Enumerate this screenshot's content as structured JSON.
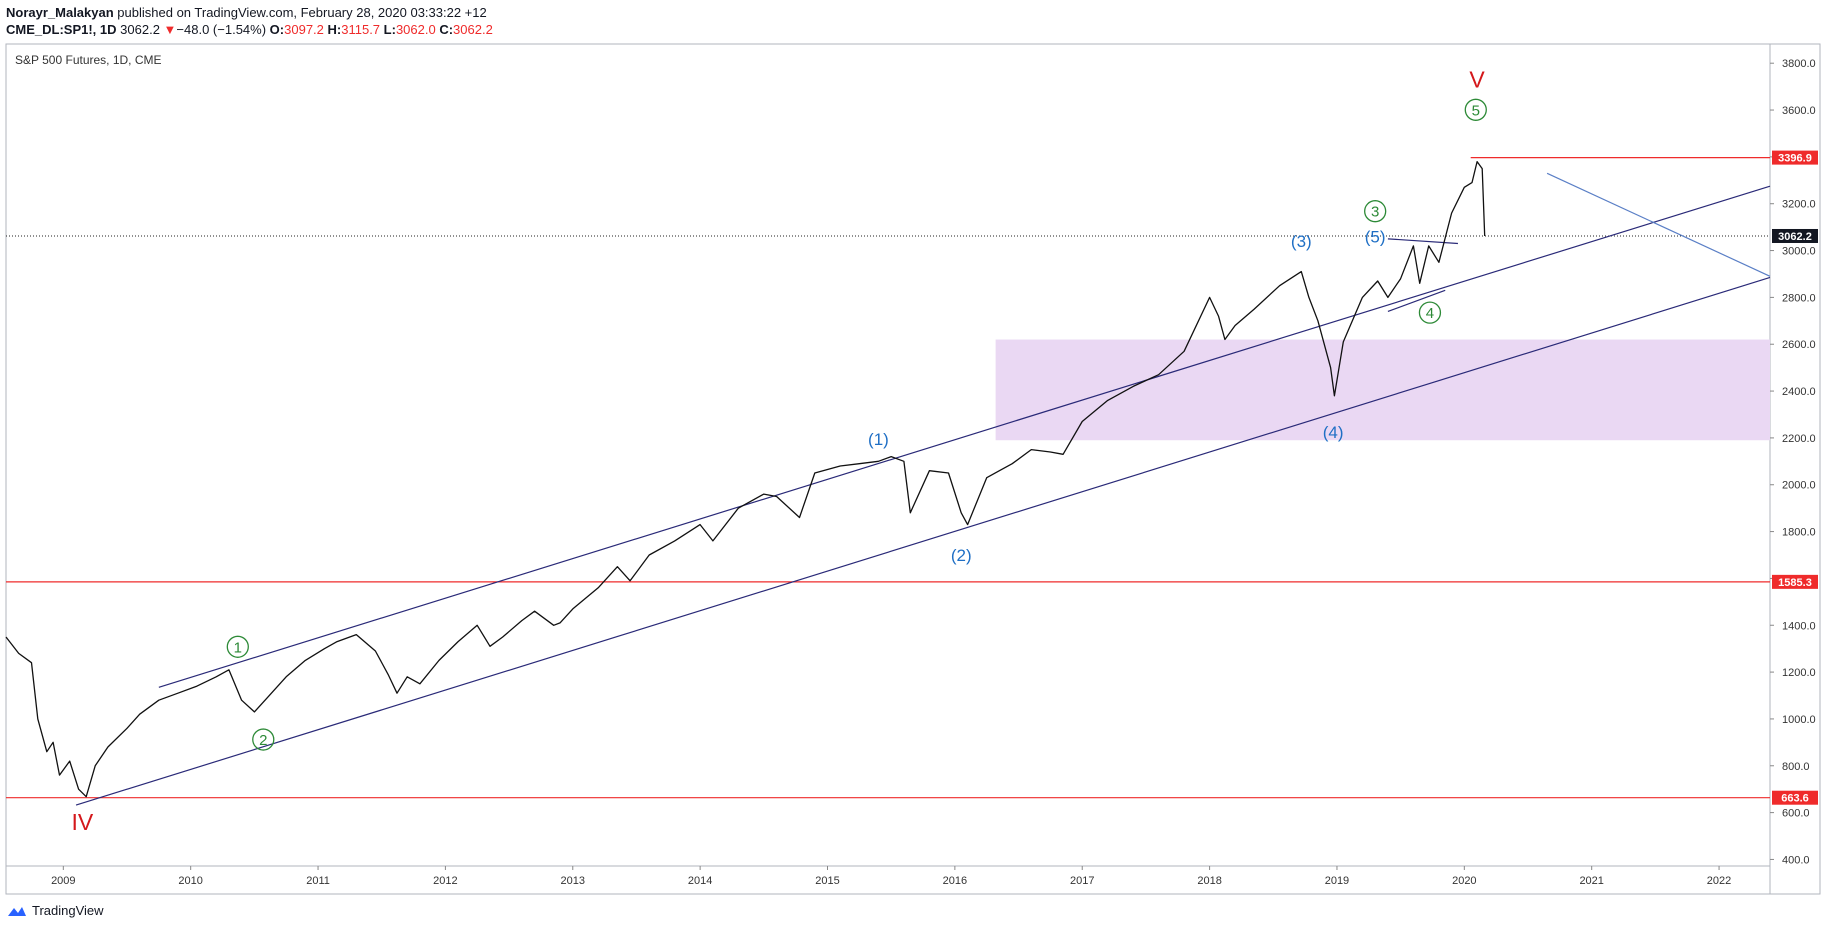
{
  "header": {
    "author": "Norayr_Malakyan",
    "published_text": "published on TradingView.com, February 28, 2020 03:33:22 +12",
    "symbol": "CME_DL:SP1!, 1D",
    "last": "3062.2",
    "change_arrow": "▼",
    "change": "−48.0 (−1.54%)",
    "o_label": "O:",
    "o_value": "3097.2",
    "h_label": "H:",
    "h_value": "3115.7",
    "l_label": "L:",
    "l_value": "3062.0",
    "c_label": "C:",
    "c_value": "3062.2"
  },
  "footer": {
    "brand": "TradingView",
    "logo_icon": "tradingview-logo-icon"
  },
  "chart_data": {
    "type": "line",
    "title": "S&P 500 Futures, 1D, CME",
    "xlabel": "",
    "ylabel": "",
    "x_ticks": [
      "2009",
      "2010",
      "2011",
      "2012",
      "2013",
      "2014",
      "2015",
      "2016",
      "2017",
      "2018",
      "2019",
      "2020",
      "2021",
      "2022"
    ],
    "y_ticks": [
      400,
      600,
      800,
      1000,
      1200,
      1400,
      1600,
      1800,
      2000,
      2200,
      2400,
      2600,
      2800,
      3000,
      3200,
      3400,
      3600,
      3800
    ],
    "xlim": [
      2008.55,
      2022.4
    ],
    "ylim": [
      372,
      3882
    ],
    "grid": false,
    "series": [
      {
        "x": [
          2008.55,
          2008.65,
          2008.75,
          2008.8,
          2008.87,
          2008.92,
          2008.97,
          2009.05,
          2009.12,
          2009.18,
          2009.25,
          2009.35,
          2009.5,
          2009.6,
          2009.75,
          2009.9,
          2010.05,
          2010.2,
          2010.3,
          2010.4,
          2010.5,
          2010.6,
          2010.75,
          2010.9,
          2011.05,
          2011.15,
          2011.3,
          2011.45,
          2011.55,
          2011.62,
          2011.7,
          2011.8,
          2011.95,
          2012.1,
          2012.25,
          2012.35,
          2012.45,
          2012.6,
          2012.7,
          2012.85,
          2012.9,
          2013.0,
          2013.2,
          2013.35,
          2013.45,
          2013.6,
          2013.8,
          2014.0,
          2014.1,
          2014.3,
          2014.5,
          2014.6,
          2014.78,
          2014.9,
          2015.1,
          2015.25,
          2015.4,
          2015.5,
          2015.6,
          2015.65,
          2015.8,
          2015.95,
          2016.05,
          2016.1,
          2016.25,
          2016.35,
          2016.45,
          2016.6,
          2016.75,
          2016.85,
          2017.0,
          2017.2,
          2017.4,
          2017.6,
          2017.8,
          2018.0,
          2018.07,
          2018.12,
          2018.2,
          2018.35,
          2018.55,
          2018.72,
          2018.78,
          2018.85,
          2018.95,
          2018.98,
          2019.05,
          2019.2,
          2019.32,
          2019.4,
          2019.5,
          2019.6,
          2019.65,
          2019.72,
          2019.8,
          2019.9,
          2020.0,
          2020.06,
          2020.1,
          2020.14,
          2020.16
        ],
        "y": [
          1350,
          1280,
          1240,
          1000,
          860,
          900,
          760,
          820,
          700,
          668,
          800,
          880,
          960,
          1020,
          1080,
          1110,
          1140,
          1180,
          1210,
          1080,
          1030,
          1090,
          1180,
          1250,
          1300,
          1330,
          1360,
          1290,
          1190,
          1110,
          1180,
          1150,
          1250,
          1330,
          1400,
          1310,
          1350,
          1420,
          1460,
          1400,
          1410,
          1470,
          1560,
          1650,
          1590,
          1700,
          1760,
          1830,
          1760,
          1900,
          1960,
          1950,
          1860,
          2050,
          2080,
          2090,
          2100,
          2120,
          2100,
          1880,
          2060,
          2050,
          1880,
          1830,
          2030,
          2060,
          2090,
          2150,
          2140,
          2130,
          2270,
          2360,
          2420,
          2470,
          2570,
          2800,
          2720,
          2620,
          2680,
          2750,
          2850,
          2910,
          2800,
          2700,
          2500,
          2380,
          2610,
          2800,
          2870,
          2800,
          2880,
          3020,
          2860,
          3020,
          2950,
          3160,
          3270,
          3290,
          3380,
          3350,
          3062
        ]
      }
    ],
    "horizontal_levels": [
      {
        "label": "3396.9",
        "value": 3396.9,
        "color": "#ef2b2b"
      },
      {
        "label": "1585.3",
        "value": 1585.3,
        "color": "#ef2b2b"
      },
      {
        "label": "663.6",
        "value": 663.6,
        "color": "#ef2b2b"
      }
    ],
    "last_price": {
      "label": "3062.2",
      "value": 3062.2
    },
    "wave_labels": [
      {
        "text": "IV",
        "x": 2009.15,
        "y": 560,
        "color": "#d4181b",
        "style": "major"
      },
      {
        "text": "V",
        "x": 2020.1,
        "y": 3730,
        "color": "#d4181b",
        "style": "major"
      },
      {
        "text": "1",
        "x": 2010.37,
        "y": 1308,
        "color": "#2d8a37",
        "style": "circle"
      },
      {
        "text": "2",
        "x": 2010.57,
        "y": 912,
        "color": "#2d8a37",
        "style": "circle"
      },
      {
        "text": "3",
        "x": 2019.3,
        "y": 3168,
        "color": "#2d8a37",
        "style": "circle"
      },
      {
        "text": "4",
        "x": 2019.73,
        "y": 2735,
        "color": "#2d8a37",
        "style": "circle"
      },
      {
        "text": "5",
        "x": 2020.09,
        "y": 3601,
        "color": "#2d8a37",
        "style": "circle"
      },
      {
        "text": "(1)",
        "x": 2015.4,
        "y": 2195,
        "color": "#1f6fc5",
        "style": "paren"
      },
      {
        "text": "(2)",
        "x": 2016.05,
        "y": 1700,
        "color": "#1f6fc5",
        "style": "paren"
      },
      {
        "text": "(3)",
        "x": 2018.72,
        "y": 3040,
        "color": "#1f6fc5",
        "style": "paren"
      },
      {
        "text": "(4)",
        "x": 2018.97,
        "y": 2225,
        "color": "#1f6fc5",
        "style": "paren"
      },
      {
        "text": "(5)",
        "x": 2019.3,
        "y": 3060,
        "color": "#1f6fc5",
        "style": "paren"
      }
    ],
    "trendlines": [
      {
        "x1": 2009.1,
        "y1": 632,
        "x2": 2022.4,
        "y2": 2885,
        "color": "#2a2a78"
      },
      {
        "x1": 2009.75,
        "y1": 1135,
        "x2": 2022.4,
        "y2": 3275,
        "color": "#2a2a78"
      },
      {
        "x1": 2019.4,
        "y1": 2740,
        "x2": 2019.85,
        "y2": 2830,
        "color": "#2a2a78"
      },
      {
        "x1": 2019.4,
        "y1": 3050,
        "x2": 2019.95,
        "y2": 3030,
        "color": "#2a2a78"
      },
      {
        "x1": 2020.65,
        "y1": 3330,
        "x2": 2022.4,
        "y2": 2890,
        "color": "#5a7fc6"
      }
    ],
    "zones": [
      {
        "x1": 2016.32,
        "x2": 2022.4,
        "y1": 2190,
        "y2": 2620,
        "color": "#ead8f3"
      }
    ]
  }
}
